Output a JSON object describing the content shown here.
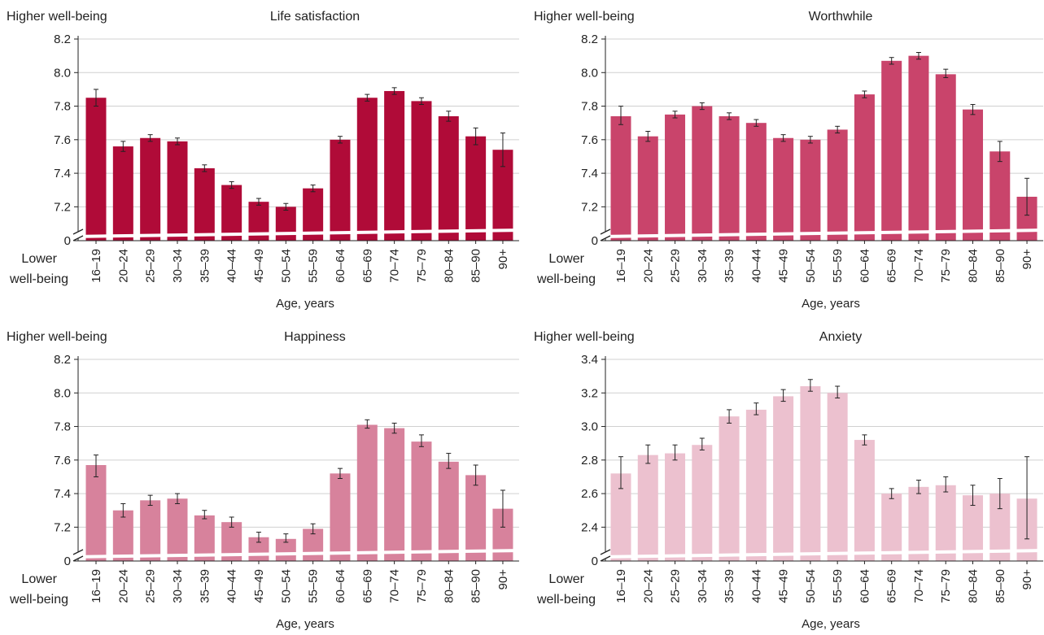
{
  "figure": {
    "x_categories": [
      "16–19",
      "20–24",
      "25–29",
      "30–34",
      "35–39",
      "40–44",
      "45–49",
      "50–54",
      "55–59",
      "60–64",
      "65–69",
      "70–74",
      "75–79",
      "80–84",
      "85–90",
      "90+"
    ],
    "xlabel": "Age, years",
    "top_annotation": "Higher well-being",
    "bottom_annotation_line1": "Lower",
    "bottom_annotation_line2": "well-being",
    "zero_tick": "0"
  },
  "chart_data": [
    {
      "type": "bar",
      "title": "Life satisfaction",
      "xlabel": "Age, years",
      "ylabel": "",
      "color": "#b00b38",
      "ylim": [
        7.1,
        8.2
      ],
      "axis_break": true,
      "yticks": [
        "8.2",
        "8.0",
        "7.8",
        "7.6",
        "7.4",
        "7.2"
      ],
      "categories": [
        "16–19",
        "20–24",
        "25–29",
        "30–34",
        "35–39",
        "40–44",
        "45–49",
        "50–54",
        "55–59",
        "60–64",
        "65–69",
        "70–74",
        "75–79",
        "80–84",
        "85–90",
        "90+"
      ],
      "values": [
        7.85,
        7.56,
        7.61,
        7.59,
        7.43,
        7.33,
        7.23,
        7.2,
        7.31,
        7.6,
        7.85,
        7.89,
        7.83,
        7.74,
        7.62,
        7.54
      ],
      "error_low": [
        7.8,
        7.53,
        7.59,
        7.57,
        7.41,
        7.31,
        7.21,
        7.18,
        7.29,
        7.58,
        7.83,
        7.87,
        7.81,
        7.71,
        7.57,
        7.44
      ],
      "error_high": [
        7.9,
        7.59,
        7.63,
        7.61,
        7.45,
        7.35,
        7.25,
        7.22,
        7.33,
        7.62,
        7.87,
        7.91,
        7.85,
        7.77,
        7.67,
        7.64
      ]
    },
    {
      "type": "bar",
      "title": "Worthwhile",
      "xlabel": "Age, years",
      "ylabel": "",
      "color": "#c9446b",
      "ylim": [
        7.1,
        8.2
      ],
      "axis_break": true,
      "yticks": [
        "8.2",
        "8.0",
        "7.8",
        "7.6",
        "7.4",
        "7.2"
      ],
      "categories": [
        "16–19",
        "20–24",
        "25–29",
        "30–34",
        "35–39",
        "40–44",
        "45–49",
        "50–54",
        "55–59",
        "60–64",
        "65–69",
        "70–74",
        "75–79",
        "80–84",
        "85–90",
        "90+"
      ],
      "values": [
        7.74,
        7.62,
        7.75,
        7.8,
        7.74,
        7.7,
        7.61,
        7.6,
        7.66,
        7.87,
        8.07,
        8.1,
        7.99,
        7.78,
        7.53,
        7.26
      ],
      "error_low": [
        7.69,
        7.59,
        7.73,
        7.78,
        7.72,
        7.68,
        7.59,
        7.58,
        7.64,
        7.85,
        8.05,
        8.08,
        7.97,
        7.75,
        7.47,
        7.15
      ],
      "error_high": [
        7.8,
        7.65,
        7.77,
        7.82,
        7.76,
        7.72,
        7.63,
        7.62,
        7.68,
        7.89,
        8.09,
        8.12,
        8.02,
        7.81,
        7.59,
        7.37
      ]
    },
    {
      "type": "bar",
      "title": "Happiness",
      "xlabel": "Age, years",
      "ylabel": "",
      "color": "#d7829c",
      "ylim": [
        7.1,
        8.2
      ],
      "axis_break": true,
      "yticks": [
        "8.2",
        "8.0",
        "7.8",
        "7.6",
        "7.4",
        "7.2"
      ],
      "categories": [
        "16–19",
        "20–24",
        "25–29",
        "30–34",
        "35–39",
        "40–44",
        "45–49",
        "50–54",
        "55–59",
        "60–64",
        "65–69",
        "70–74",
        "75–79",
        "80–84",
        "85–90",
        "90+"
      ],
      "values": [
        7.57,
        7.3,
        7.36,
        7.37,
        7.27,
        7.23,
        7.14,
        7.13,
        7.19,
        7.52,
        7.81,
        7.79,
        7.71,
        7.59,
        7.51,
        7.31
      ],
      "error_low": [
        7.5,
        7.26,
        7.33,
        7.34,
        7.25,
        7.2,
        7.11,
        7.11,
        7.16,
        7.49,
        7.79,
        7.76,
        7.68,
        7.55,
        7.45,
        7.2
      ],
      "error_high": [
        7.63,
        7.34,
        7.39,
        7.4,
        7.3,
        7.26,
        7.17,
        7.16,
        7.22,
        7.55,
        7.84,
        7.82,
        7.75,
        7.64,
        7.57,
        7.42
      ]
    },
    {
      "type": "bar",
      "title": "Anxiety",
      "xlabel": "Age, years",
      "ylabel": "",
      "color": "#ecc1cf",
      "ylim": [
        2.3,
        3.4
      ],
      "axis_break": true,
      "yticks": [
        "3.4",
        "3.2",
        "3.0",
        "2.8",
        "2.6",
        "2.4"
      ],
      "categories": [
        "16–19",
        "20–24",
        "25–29",
        "30–34",
        "35–39",
        "40–44",
        "45–49",
        "50–54",
        "55–59",
        "60–64",
        "65–69",
        "70–74",
        "75–79",
        "80–84",
        "85–90",
        "90+"
      ],
      "values": [
        2.72,
        2.83,
        2.84,
        2.89,
        3.06,
        3.1,
        3.18,
        3.24,
        3.2,
        2.92,
        2.6,
        2.64,
        2.65,
        2.59,
        2.6,
        2.57
      ],
      "error_low": [
        2.63,
        2.78,
        2.8,
        2.86,
        3.02,
        3.07,
        3.15,
        3.21,
        3.17,
        2.89,
        2.57,
        2.6,
        2.61,
        2.53,
        2.51,
        2.33
      ],
      "error_high": [
        2.82,
        2.89,
        2.89,
        2.93,
        3.1,
        3.14,
        3.22,
        3.28,
        3.24,
        2.95,
        2.63,
        2.68,
        2.7,
        2.65,
        2.69,
        2.82
      ]
    }
  ]
}
